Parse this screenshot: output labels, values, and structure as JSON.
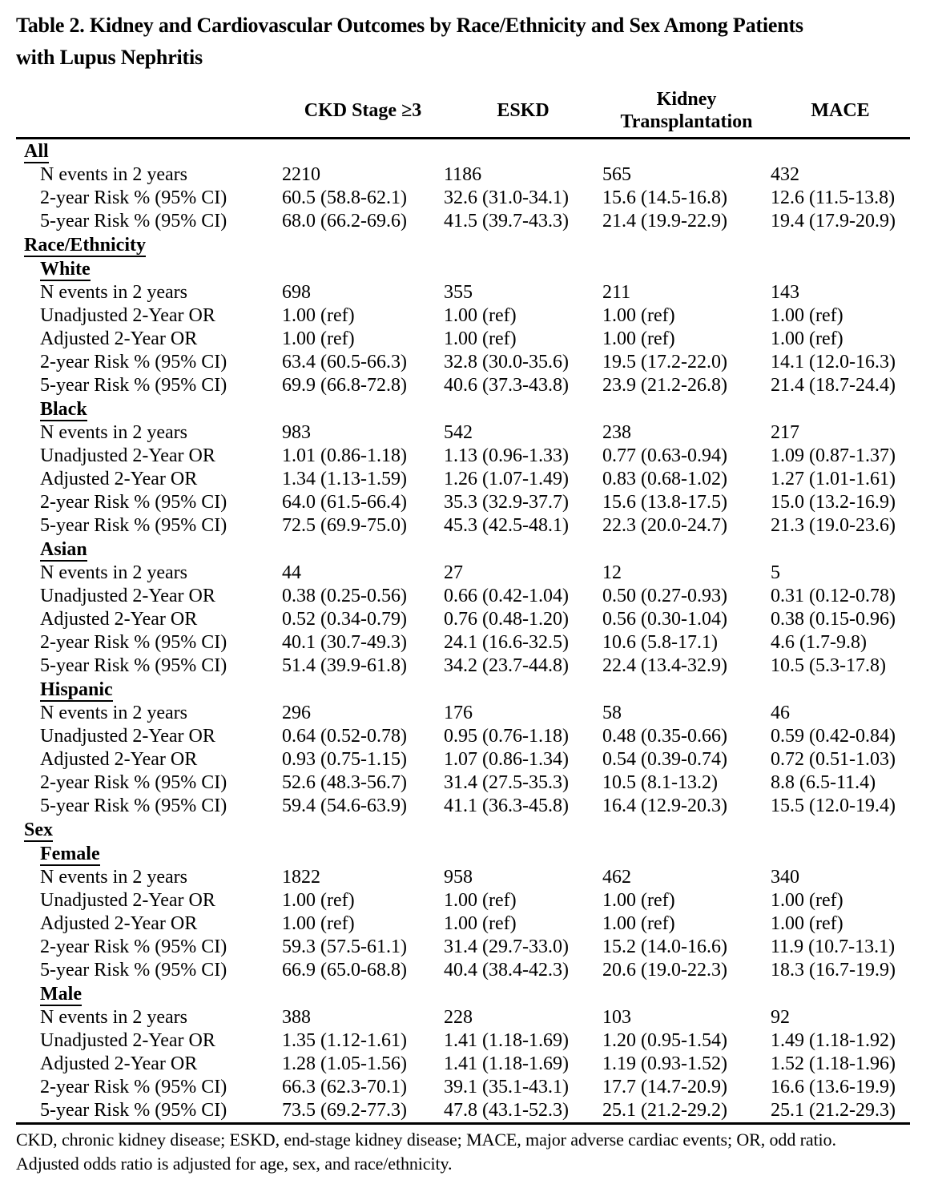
{
  "title_lines": [
    "Table 2. Kidney and Cardiovascular Outcomes by Race/Ethnicity and Sex Among Patients",
    "with Lupus Nephritis"
  ],
  "columns": [
    "CKD Stage ≥3",
    "ESKD",
    "Kidney Transplantation",
    "MACE"
  ],
  "sections": [
    {
      "label": "All",
      "level": 1,
      "rows": [
        {
          "label": "N events in 2 years",
          "values": [
            "2210",
            "1186",
            "565",
            "432"
          ]
        },
        {
          "label": "2-year Risk % (95% CI)",
          "values": [
            "60.5 (58.8-62.1)",
            "32.6 (31.0-34.1)",
            "15.6 (14.5-16.8)",
            "12.6 (11.5-13.8)"
          ]
        },
        {
          "label": "5-year Risk % (95% CI)",
          "values": [
            "68.0 (66.2-69.6)",
            "41.5 (39.7-43.3)",
            "21.4 (19.9-22.9)",
            "19.4 (17.9-20.9)"
          ]
        }
      ]
    },
    {
      "label": "Race/Ethnicity",
      "level": 1,
      "rows": []
    },
    {
      "label": "White",
      "level": 2,
      "rows": [
        {
          "label": "N events in 2 years",
          "values": [
            "698",
            "355",
            "211",
            "143"
          ]
        },
        {
          "label": "Unadjusted 2-Year OR",
          "values": [
            "1.00 (ref)",
            "1.00 (ref)",
            "1.00 (ref)",
            "1.00 (ref)"
          ]
        },
        {
          "label": "Adjusted 2-Year OR",
          "values": [
            "1.00 (ref)",
            "1.00 (ref)",
            "1.00 (ref)",
            "1.00 (ref)"
          ]
        },
        {
          "label": "2-year Risk % (95% CI)",
          "values": [
            "63.4 (60.5-66.3)",
            "32.8 (30.0-35.6)",
            "19.5 (17.2-22.0)",
            "14.1 (12.0-16.3)"
          ]
        },
        {
          "label": "5-year Risk % (95% CI)",
          "values": [
            "69.9 (66.8-72.8)",
            "40.6 (37.3-43.8)",
            "23.9 (21.2-26.8)",
            "21.4 (18.7-24.4)"
          ]
        }
      ]
    },
    {
      "label": "Black",
      "level": 2,
      "rows": [
        {
          "label": "N events in 2 years",
          "values": [
            "983",
            "542",
            "238",
            "217"
          ]
        },
        {
          "label": "Unadjusted 2-Year OR",
          "values": [
            "1.01 (0.86-1.18)",
            "1.13 (0.96-1.33)",
            "0.77 (0.63-0.94)",
            "1.09 (0.87-1.37)"
          ]
        },
        {
          "label": "Adjusted 2-Year OR",
          "values": [
            "1.34 (1.13-1.59)",
            "1.26 (1.07-1.49)",
            "0.83 (0.68-1.02)",
            "1.27 (1.01-1.61)"
          ]
        },
        {
          "label": "2-year Risk % (95% CI)",
          "values": [
            "64.0 (61.5-66.4)",
            "35.3 (32.9-37.7)",
            "15.6 (13.8-17.5)",
            "15.0 (13.2-16.9)"
          ]
        },
        {
          "label": "5-year Risk % (95% CI)",
          "values": [
            "72.5 (69.9-75.0)",
            "45.3 (42.5-48.1)",
            "22.3 (20.0-24.7)",
            "21.3 (19.0-23.6)"
          ]
        }
      ]
    },
    {
      "label": "Asian",
      "level": 2,
      "rows": [
        {
          "label": "N events in 2 years",
          "values": [
            "44",
            "27",
            "12",
            "5"
          ]
        },
        {
          "label": "Unadjusted 2-Year OR",
          "values": [
            "0.38 (0.25-0.56)",
            "0.66 (0.42-1.04)",
            "0.50 (0.27-0.93)",
            "0.31 (0.12-0.78)"
          ]
        },
        {
          "label": "Adjusted 2-Year OR",
          "values": [
            "0.52 (0.34-0.79)",
            "0.76 (0.48-1.20)",
            "0.56 (0.30-1.04)",
            "0.38 (0.15-0.96)"
          ]
        },
        {
          "label": "2-year Risk % (95% CI)",
          "values": [
            "40.1 (30.7-49.3)",
            "24.1 (16.6-32.5)",
            "10.6 (5.8-17.1)",
            "4.6 (1.7-9.8)"
          ]
        },
        {
          "label": "5-year Risk % (95% CI)",
          "values": [
            "51.4 (39.9-61.8)",
            "34.2 (23.7-44.8)",
            "22.4 (13.4-32.9)",
            "10.5 (5.3-17.8)"
          ]
        }
      ]
    },
    {
      "label": "Hispanic",
      "level": 2,
      "rows": [
        {
          "label": "N events in 2 years",
          "values": [
            "296",
            "176",
            "58",
            "46"
          ]
        },
        {
          "label": "Unadjusted 2-Year OR",
          "values": [
            "0.64 (0.52-0.78)",
            "0.95 (0.76-1.18)",
            "0.48 (0.35-0.66)",
            "0.59 (0.42-0.84)"
          ]
        },
        {
          "label": "Adjusted 2-Year OR",
          "values": [
            "0.93 (0.75-1.15)",
            "1.07 (0.86-1.34)",
            "0.54 (0.39-0.74)",
            "0.72 (0.51-1.03)"
          ]
        },
        {
          "label": "2-year Risk % (95% CI)",
          "values": [
            "52.6 (48.3-56.7)",
            "31.4 (27.5-35.3)",
            "10.5 (8.1-13.2)",
            "8.8 (6.5-11.4)"
          ]
        },
        {
          "label": "5-year Risk % (95% CI)",
          "values": [
            "59.4 (54.6-63.9)",
            "41.1 (36.3-45.8)",
            "16.4 (12.9-20.3)",
            "15.5 (12.0-19.4)"
          ]
        }
      ]
    },
    {
      "label": "Sex",
      "level": 1,
      "rows": []
    },
    {
      "label": "Female",
      "level": 2,
      "rows": [
        {
          "label": "N events in 2 years",
          "values": [
            "1822",
            "958",
            "462",
            "340"
          ]
        },
        {
          "label": "Unadjusted 2-Year OR",
          "values": [
            "1.00 (ref)",
            "1.00 (ref)",
            "1.00 (ref)",
            "1.00 (ref)"
          ]
        },
        {
          "label": "Adjusted 2-Year OR",
          "values": [
            "1.00 (ref)",
            "1.00 (ref)",
            "1.00 (ref)",
            "1.00 (ref)"
          ]
        },
        {
          "label": "2-year Risk % (95% CI)",
          "values": [
            "59.3 (57.5-61.1)",
            "31.4 (29.7-33.0)",
            "15.2 (14.0-16.6)",
            "11.9 (10.7-13.1)"
          ]
        },
        {
          "label": "5-year Risk % (95% CI)",
          "values": [
            "66.9 (65.0-68.8)",
            "40.4 (38.4-42.3)",
            "20.6 (19.0-22.3)",
            "18.3 (16.7-19.9)"
          ]
        }
      ]
    },
    {
      "label": "Male",
      "level": 2,
      "rows": [
        {
          "label": "N events in 2 years",
          "values": [
            "388",
            "228",
            "103",
            "92"
          ]
        },
        {
          "label": "Unadjusted 2-Year OR",
          "values": [
            "1.35 (1.12-1.61)",
            "1.41 (1.18-1.69)",
            "1.20 (0.95-1.54)",
            "1.49 (1.18-1.92)"
          ]
        },
        {
          "label": "Adjusted 2-Year OR",
          "values": [
            "1.28 (1.05-1.56)",
            "1.41 (1.18-1.69)",
            "1.19 (0.93-1.52)",
            "1.52 (1.18-1.96)"
          ]
        },
        {
          "label": "2-year Risk % (95% CI)",
          "values": [
            "66.3 (62.3-70.1)",
            "39.1 (35.1-43.1)",
            "17.7 (14.7-20.9)",
            "16.6 (13.6-19.9)"
          ]
        },
        {
          "label": "5-year Risk % (95% CI)",
          "values": [
            "73.5 (69.2-77.3)",
            "47.8 (43.1-52.3)",
            "25.1 (21.2-29.2)",
            "25.1 (21.2-29.3)"
          ]
        }
      ]
    }
  ],
  "footnote_lines": [
    "CKD, chronic kidney disease; ESKD, end-stage kidney disease; MACE, major adverse cardiac events; OR, odd ratio.",
    "Adjusted odds ratio is adjusted for age, sex, and race/ethnicity."
  ],
  "colors": {
    "text": "#000000",
    "background": "#ffffff",
    "rule": "#000000"
  }
}
